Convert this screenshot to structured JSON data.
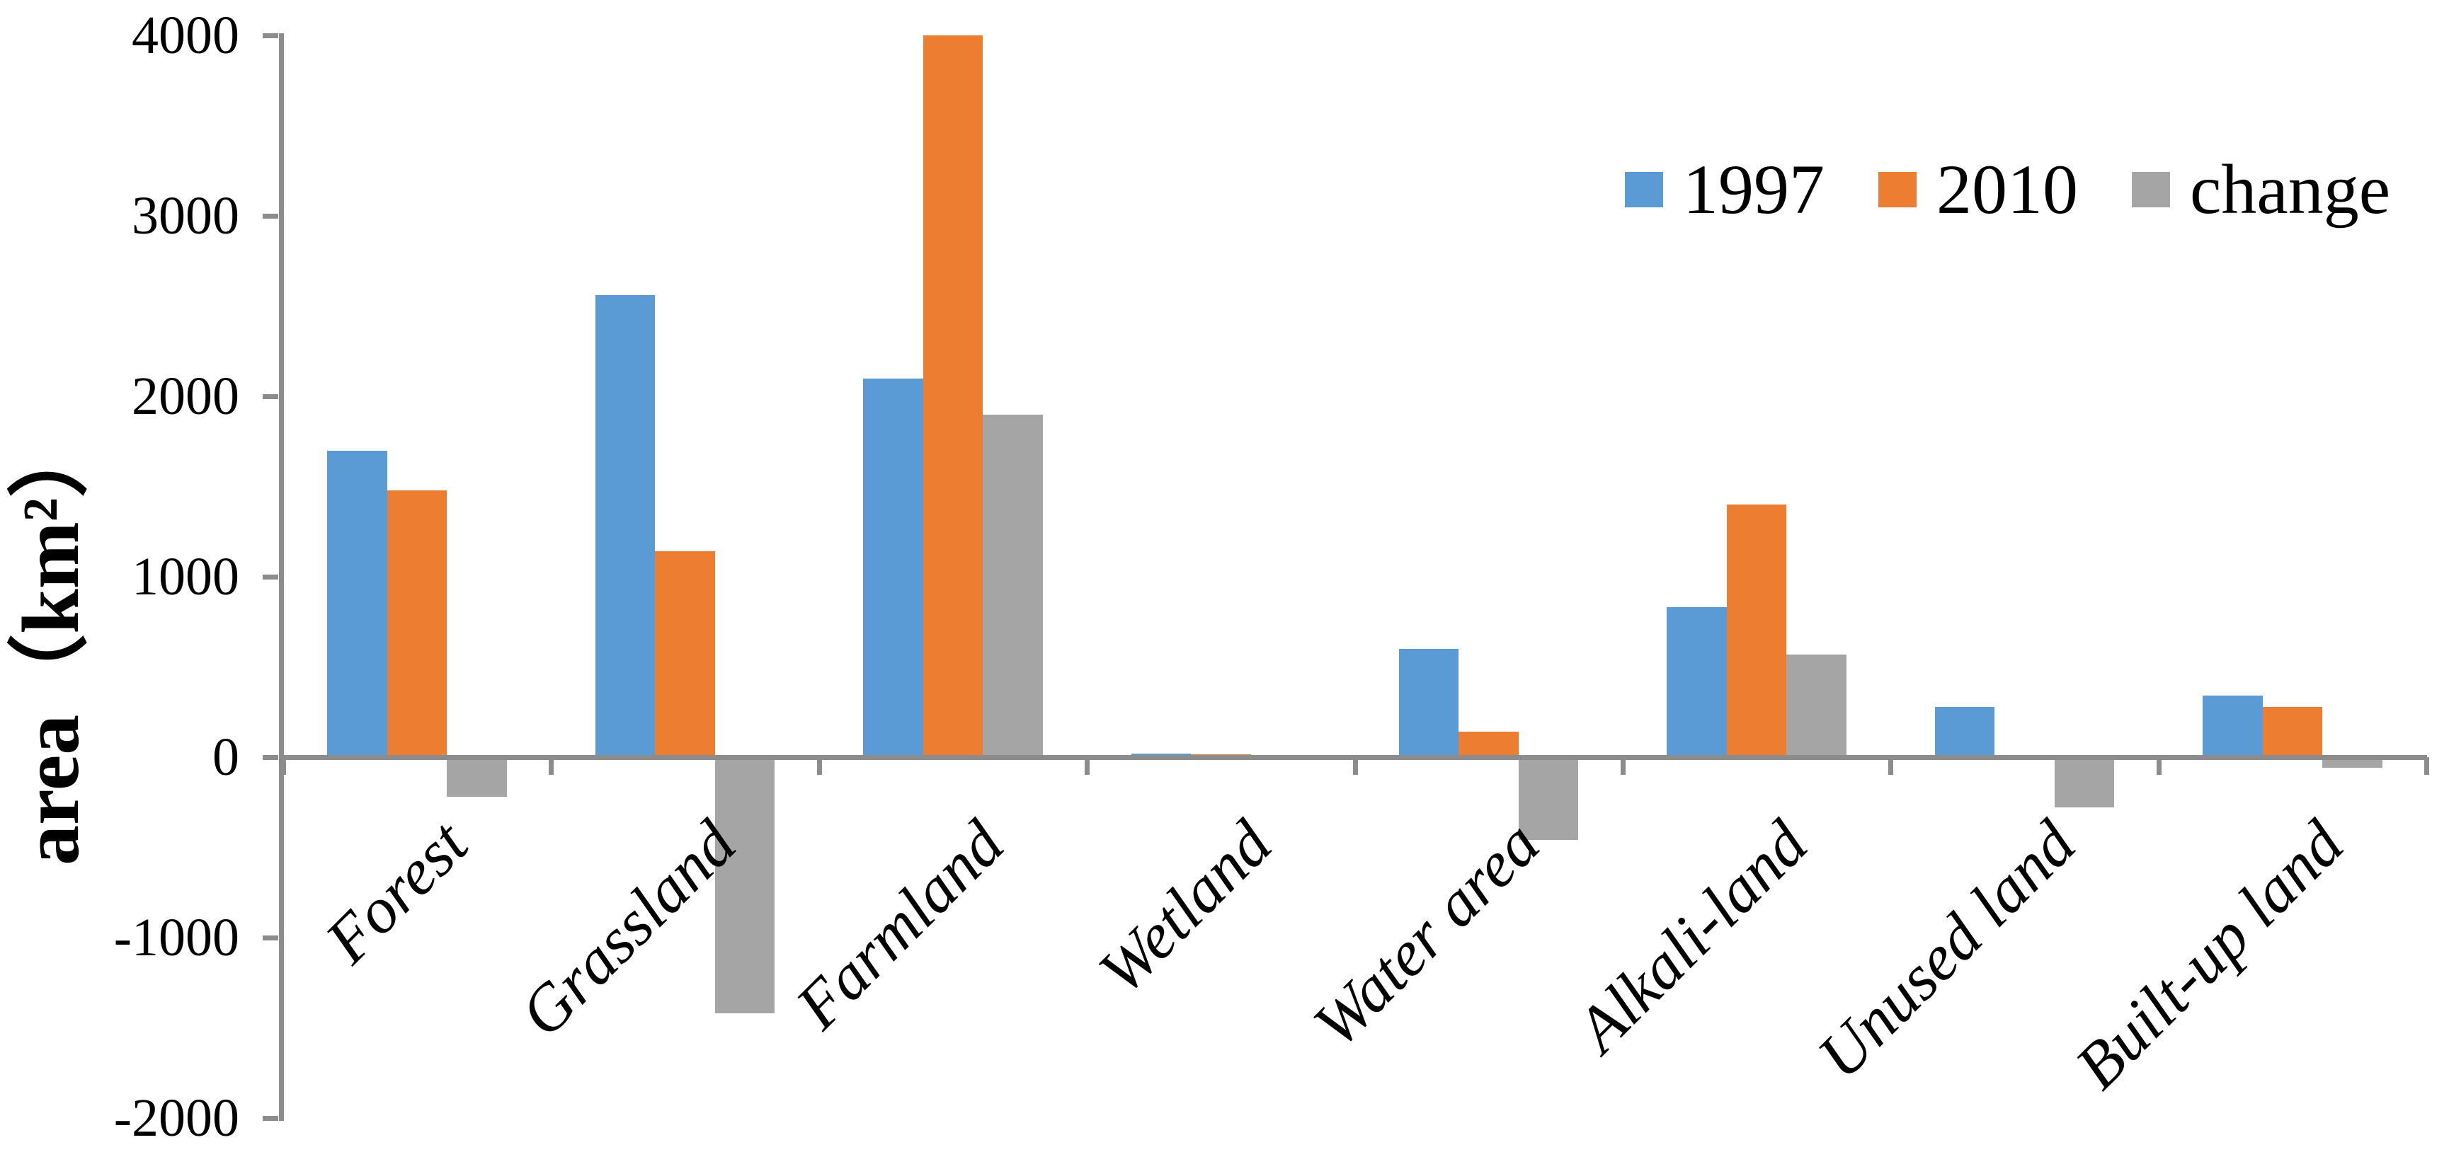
{
  "chart_data": {
    "type": "bar",
    "title": "",
    "ylabel": "area（km²）",
    "xlabel": "",
    "categories": [
      "Forest",
      "Grassland",
      "Farmland",
      "Wetland",
      "Water area",
      "Alkali-land",
      "Unused land",
      "Built-up land"
    ],
    "series": [
      {
        "name": "1997",
        "color": "#5B9BD5",
        "values": [
          1700,
          2560,
          2100,
          20,
          600,
          830,
          280,
          340
        ]
      },
      {
        "name": "2010",
        "color": "#ED7D31",
        "values": [
          1480,
          1140,
          4000,
          15,
          140,
          1400,
          0,
          280
        ]
      },
      {
        "name": "change",
        "color": "#A5A5A5",
        "values": [
          -220,
          -1420,
          1900,
          -5,
          -460,
          570,
          -280,
          -60
        ]
      }
    ],
    "ylim": [
      -2000,
      4000
    ],
    "yticks": [
      4000,
      3000,
      2000,
      1000,
      0,
      -1000,
      -2000
    ],
    "grid": false,
    "legend_position": "top-right",
    "axis_color": "#8C8C8C",
    "text_color": "#000000",
    "background": "#FFFFFF"
  }
}
